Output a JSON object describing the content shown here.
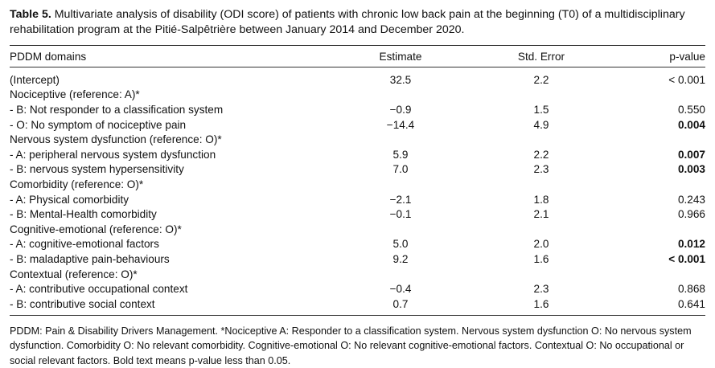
{
  "caption": {
    "label": "Table 5.",
    "text": "Multivariate analysis of disability (ODI score) of patients with chronic low back pain at the beginning (T0) of a multidisciplinary rehabilitation program at the Pitié-Salpêtrière between January 2014 and December 2020."
  },
  "header": {
    "col1": "PDDM domains",
    "col2": "Estimate",
    "col3": "Std. Error",
    "col4": "p-value"
  },
  "rows": [
    {
      "label": "(Intercept)",
      "estimate": "32.5",
      "se": "2.2",
      "p": "< 0.001",
      "bold": false
    },
    {
      "label": "Nociceptive (reference: A)*",
      "estimate": "",
      "se": "",
      "p": "",
      "bold": false
    },
    {
      "label": " - B: Not responder to a classification system",
      "estimate": "−0.9",
      "se": "1.5",
      "p": "0.550",
      "bold": false
    },
    {
      "label": " - O: No symptom of nociceptive pain",
      "estimate": "−14.4",
      "se": "4.9",
      "p": "0.004",
      "bold": true
    },
    {
      "label": "Nervous system dysfunction (reference: O)*",
      "estimate": "",
      "se": "",
      "p": "",
      "bold": false
    },
    {
      "label": " - A: peripheral nervous system dysfunction",
      "estimate": "5.9",
      "se": "2.2",
      "p": "0.007",
      "bold": true
    },
    {
      "label": " - B: nervous system hypersensitivity",
      "estimate": "7.0",
      "se": "2.3",
      "p": "0.003",
      "bold": true
    },
    {
      "label": "Comorbidity (reference: O)*",
      "estimate": "",
      "se": "",
      "p": "",
      "bold": false
    },
    {
      "label": " - A: Physical comorbidity",
      "estimate": "−2.1",
      "se": "1.8",
      "p": "0.243",
      "bold": false
    },
    {
      "label": " - B: Mental-Health comorbidity",
      "estimate": "−0.1",
      "se": "2.1",
      "p": "0.966",
      "bold": false
    },
    {
      "label": "Cognitive-emotional (reference: O)*",
      "estimate": "",
      "se": "",
      "p": "",
      "bold": false
    },
    {
      "label": " - A: cognitive-emotional factors",
      "estimate": "5.0",
      "se": "2.0",
      "p": "0.012",
      "bold": true
    },
    {
      "label": " - B: maladaptive pain-behaviours",
      "estimate": "9.2",
      "se": "1.6",
      "p": "< 0.001",
      "bold": true
    },
    {
      "label": "Contextual (reference: O)*",
      "estimate": "",
      "se": "",
      "p": "",
      "bold": false
    },
    {
      "label": " - A: contributive occupational context",
      "estimate": "−0.4",
      "se": "2.3",
      "p": "0.868",
      "bold": false
    },
    {
      "label": " - B: contributive social context",
      "estimate": "0.7",
      "se": "1.6",
      "p": "0.641",
      "bold": false
    }
  ],
  "footnote": "PDDM: Pain & Disability Drivers Management. *Nociceptive A: Responder to a classification system. Nervous system dysfunction O: No nervous system dysfunction. Comorbidity O: No relevant comorbidity. Cognitive-emotional O: No relevant cognitive-emotional factors. Contextual O: No occupational or social relevant factors. Bold text means p-value less than 0.05."
}
